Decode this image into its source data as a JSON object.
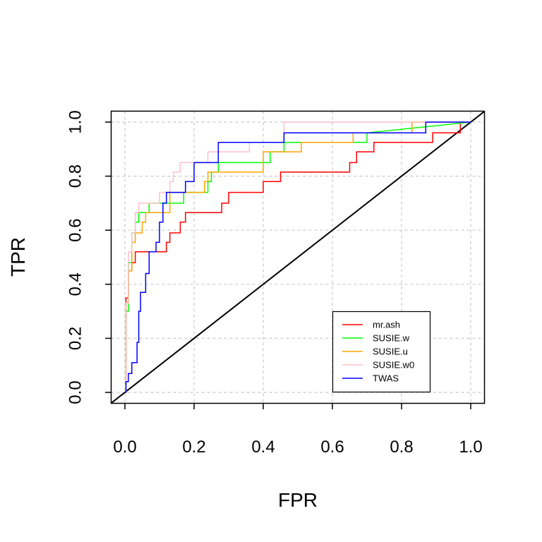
{
  "chart_data": {
    "type": "line",
    "title": "",
    "xlabel": "FPR",
    "ylabel": "TPR",
    "xlim": [
      -0.04,
      1.04
    ],
    "ylim": [
      -0.04,
      1.04
    ],
    "x_ticks": [
      "0.0",
      "0.2",
      "0.4",
      "0.6",
      "0.8",
      "1.0"
    ],
    "y_ticks": [
      "0.0",
      "0.2",
      "0.4",
      "0.6",
      "0.8",
      "1.0"
    ],
    "grid": true,
    "legend_position": "bottom-right",
    "diagonal_reference": true,
    "series": [
      {
        "name": "mr.ash",
        "color": "#ff0000",
        "x": [
          0,
          0.003,
          0.003,
          0.01,
          0.01,
          0.02,
          0.02,
          0.03,
          0.03,
          0.12,
          0.12,
          0.13,
          0.13,
          0.14,
          0.14,
          0.16,
          0.16,
          0.175,
          0.175,
          0.28,
          0.28,
          0.3,
          0.3,
          0.4,
          0.4,
          0.45,
          0.45,
          0.65,
          0.65,
          0.67,
          0.67,
          0.72,
          0.72,
          0.89,
          0.89,
          0.97,
          0.97,
          1.0
        ],
        "y": [
          0,
          0,
          0.35,
          0.35,
          0.45,
          0.45,
          0.48,
          0.48,
          0.52,
          0.52,
          0.555,
          0.555,
          0.59,
          0.59,
          0.59,
          0.59,
          0.63,
          0.63,
          0.665,
          0.665,
          0.7,
          0.7,
          0.74,
          0.74,
          0.78,
          0.78,
          0.815,
          0.815,
          0.85,
          0.85,
          0.89,
          0.89,
          0.925,
          0.925,
          0.96,
          0.96,
          1.0,
          1.0
        ]
      },
      {
        "name": "SUSIE.w",
        "color": "#00ff00",
        "x": [
          0,
          0.003,
          0.003,
          0.01,
          0.01,
          0.02,
          0.02,
          0.03,
          0.03,
          0.04,
          0.04,
          0.07,
          0.07,
          0.17,
          0.17,
          0.24,
          0.24,
          0.25,
          0.25,
          0.27,
          0.27,
          0.42,
          0.42,
          0.46,
          0.46,
          0.7,
          0.7,
          1.0
        ],
        "y": [
          0,
          0,
          0.3,
          0.3,
          0.48,
          0.48,
          0.59,
          0.59,
          0.63,
          0.63,
          0.665,
          0.665,
          0.7,
          0.7,
          0.74,
          0.74,
          0.78,
          0.78,
          0.815,
          0.815,
          0.85,
          0.85,
          0.89,
          0.89,
          0.925,
          0.925,
          0.96,
          1.0
        ]
      },
      {
        "name": "SUSIE.u",
        "color": "#ffa500",
        "x": [
          0,
          0.003,
          0.003,
          0.01,
          0.01,
          0.02,
          0.02,
          0.03,
          0.03,
          0.05,
          0.05,
          0.06,
          0.06,
          0.13,
          0.13,
          0.23,
          0.23,
          0.24,
          0.24,
          0.4,
          0.4,
          0.51,
          0.51,
          0.66,
          0.66,
          0.83,
          0.83,
          1.0
        ],
        "y": [
          0,
          0,
          0.33,
          0.33,
          0.45,
          0.45,
          0.555,
          0.555,
          0.59,
          0.59,
          0.63,
          0.63,
          0.665,
          0.665,
          0.74,
          0.74,
          0.78,
          0.78,
          0.815,
          0.815,
          0.89,
          0.89,
          0.925,
          0.925,
          0.96,
          0.96,
          1.0,
          1.0
        ]
      },
      {
        "name": "SUSIE.w0",
        "color": "#ffc0cb",
        "x": [
          0,
          0.003,
          0.003,
          0.01,
          0.01,
          0.02,
          0.02,
          0.03,
          0.03,
          0.04,
          0.04,
          0.1,
          0.1,
          0.13,
          0.13,
          0.14,
          0.14,
          0.16,
          0.16,
          0.24,
          0.24,
          0.27,
          0.27,
          0.36,
          0.36,
          0.46,
          0.46,
          0.79,
          0.79,
          1.0
        ],
        "y": [
          0,
          0,
          0.33,
          0.33,
          0.52,
          0.52,
          0.59,
          0.59,
          0.665,
          0.665,
          0.7,
          0.7,
          0.74,
          0.74,
          0.78,
          0.78,
          0.815,
          0.815,
          0.85,
          0.85,
          0.89,
          0.89,
          0.89,
          0.89,
          0.925,
          0.925,
          1.0,
          1.0,
          1.0,
          1.0
        ]
      },
      {
        "name": "TWAS",
        "color": "#0000ff",
        "x": [
          0,
          0.003,
          0.003,
          0.01,
          0.01,
          0.02,
          0.02,
          0.035,
          0.035,
          0.04,
          0.04,
          0.045,
          0.045,
          0.06,
          0.06,
          0.07,
          0.07,
          0.09,
          0.09,
          0.1,
          0.1,
          0.11,
          0.11,
          0.12,
          0.12,
          0.175,
          0.175,
          0.2,
          0.2,
          0.27,
          0.27,
          0.46,
          0.46,
          0.87,
          0.87,
          1.0
        ],
        "y": [
          0,
          0,
          0.04,
          0.04,
          0.07,
          0.07,
          0.11,
          0.11,
          0.185,
          0.185,
          0.3,
          0.3,
          0.37,
          0.37,
          0.44,
          0.44,
          0.52,
          0.52,
          0.555,
          0.555,
          0.63,
          0.63,
          0.7,
          0.7,
          0.74,
          0.74,
          0.78,
          0.78,
          0.85,
          0.85,
          0.925,
          0.925,
          0.96,
          0.96,
          1.0,
          1.0
        ]
      }
    ]
  }
}
